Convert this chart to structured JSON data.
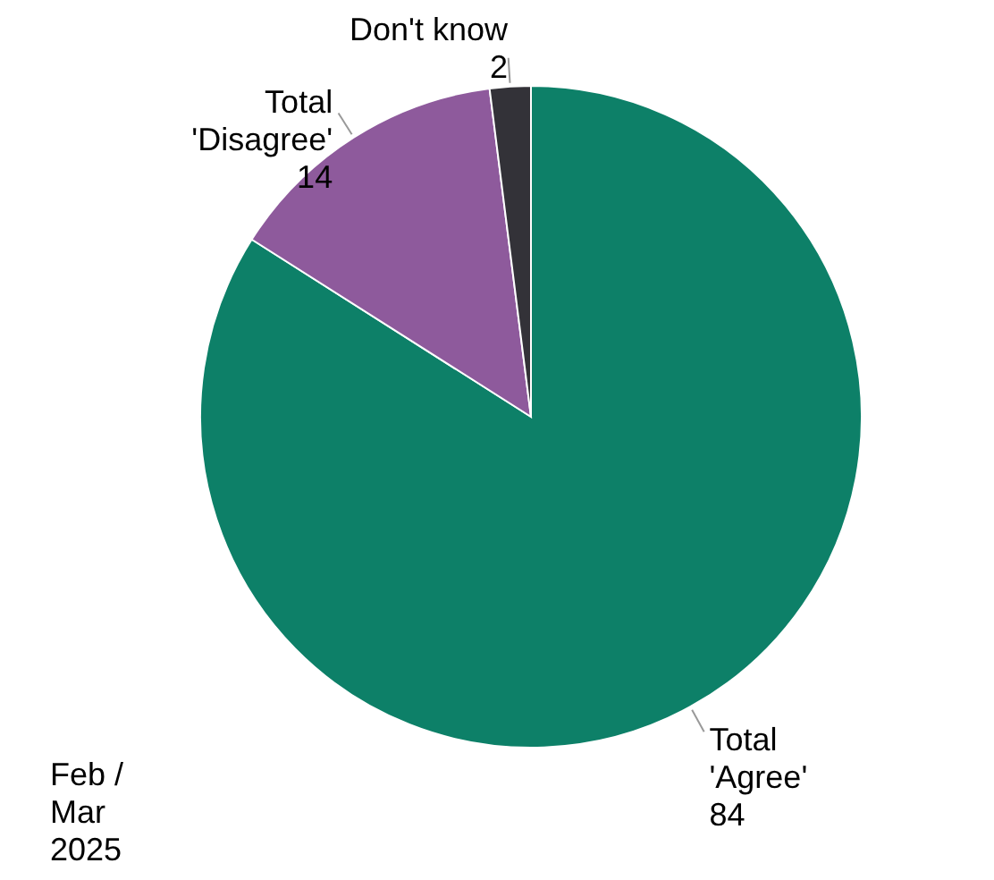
{
  "chart_data": {
    "type": "pie",
    "categories": [
      "Total 'Agree'",
      "Total 'Disagree'",
      "Don't know"
    ],
    "values": [
      84,
      14,
      2
    ],
    "colors": [
      "#0d8068",
      "#8e5a9c",
      "#333238"
    ],
    "data_labels": true,
    "annotations": [
      "Feb / Mar 2025"
    ]
  }
}
